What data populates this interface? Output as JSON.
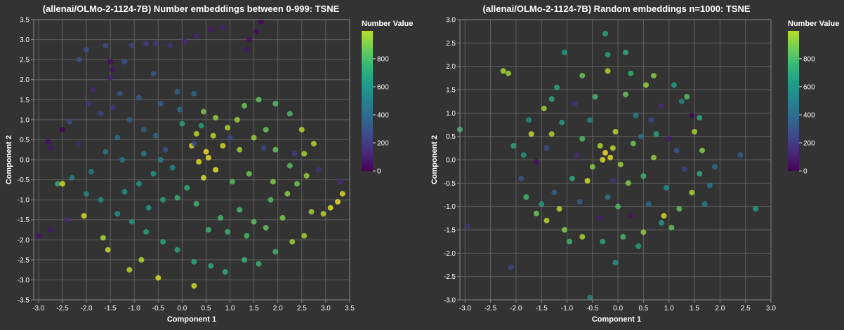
{
  "chart_data": [
    {
      "type": "scatter",
      "title": "(allenai/OLMo-2-1124-7B) Number embeddings between 0-999: TSNE",
      "xlabel": "Component 1",
      "ylabel": "Component 2",
      "xlim": [
        -3.1,
        3.5
      ],
      "ylim": [
        -3.5,
        3.5
      ],
      "x_ticks": [
        "-3.0",
        "-2.5",
        "-2.0",
        "-1.5",
        "-1.0",
        "-0.5",
        "0.0",
        "0.5",
        "1.0",
        "1.5",
        "2.0",
        "2.5",
        "3.0",
        "3.5"
      ],
      "y_ticks": [
        "-3.5",
        "-3.0",
        "-2.5",
        "-2.0",
        "-1.5",
        "-1.0",
        "-0.5",
        "0.0",
        "0.5",
        "1.0",
        "1.5",
        "2.0",
        "2.5",
        "3.0",
        "3.5"
      ],
      "grid": true,
      "legend": {
        "title": "Number Value",
        "placement": "right",
        "ticks": [
          "0",
          "200",
          "400",
          "600",
          "800"
        ],
        "range": [
          0,
          999
        ]
      },
      "colormap": "viridis",
      "marker_opacity": 0.8,
      "description": "Points form a swirl: low values (dark purple) along the upper-left and far-left edges, mid values (teal) through the center-left and bottom, high values (yellow) concentrated around (0.5, 0.0) and toward the lower right.",
      "points": [
        [
          1.65,
          3.45,
          5
        ],
        [
          1.55,
          3.2,
          20
        ],
        [
          1.4,
          3.0,
          35
        ],
        [
          1.35,
          2.75,
          55
        ],
        [
          0.6,
          3.25,
          70
        ],
        [
          0.85,
          3.3,
          90
        ],
        [
          0.3,
          3.1,
          105
        ],
        [
          0.05,
          2.95,
          120
        ],
        [
          -0.25,
          2.85,
          140
        ],
        [
          -0.55,
          2.9,
          160
        ],
        [
          -0.75,
          2.9,
          185
        ],
        [
          -1.05,
          2.85,
          205
        ],
        [
          -1.6,
          2.85,
          225
        ],
        [
          -2.0,
          2.75,
          245
        ],
        [
          -2.15,
          2.5,
          262
        ],
        [
          -1.5,
          2.45,
          30
        ],
        [
          -1.45,
          2.25,
          60
        ],
        [
          -1.5,
          2.05,
          95
        ],
        [
          -1.85,
          1.75,
          125
        ],
        [
          -1.95,
          1.4,
          150
        ],
        [
          -1.45,
          1.3,
          175
        ],
        [
          -1.7,
          1.15,
          210
        ],
        [
          -2.35,
          0.95,
          235
        ],
        [
          -2.5,
          0.75,
          12
        ],
        [
          -2.8,
          0.45,
          40
        ],
        [
          -2.75,
          0.3,
          65
        ],
        [
          -2.15,
          0.4,
          100
        ],
        [
          -1.3,
          1.65,
          270
        ],
        [
          -0.9,
          1.55,
          290
        ],
        [
          -0.45,
          1.4,
          310
        ],
        [
          -0.1,
          1.7,
          330
        ],
        [
          0.25,
          1.65,
          345
        ],
        [
          -1.1,
          1.0,
          300
        ],
        [
          -0.8,
          0.75,
          320
        ],
        [
          -0.55,
          0.6,
          360
        ],
        [
          -1.35,
          0.55,
          380
        ],
        [
          -1.6,
          0.2,
          400
        ],
        [
          -1.25,
          0.0,
          415
        ],
        [
          -0.8,
          0.15,
          430
        ],
        [
          -0.45,
          0.0,
          450
        ],
        [
          -0.2,
          -0.2,
          470
        ],
        [
          -1.9,
          -0.3,
          440
        ],
        [
          -2.3,
          -0.45,
          455
        ],
        [
          -2.6,
          -0.6,
          650
        ],
        [
          -2.0,
          -0.85,
          480
        ],
        [
          -1.7,
          -1.0,
          500
        ],
        [
          -1.2,
          -0.8,
          520
        ],
        [
          -0.9,
          -0.6,
          545
        ],
        [
          -0.6,
          -0.35,
          560
        ],
        [
          -1.35,
          -1.35,
          520
        ],
        [
          -1.05,
          -1.55,
          540
        ],
        [
          -0.7,
          -1.2,
          565
        ],
        [
          -0.4,
          -1.0,
          590
        ],
        [
          -0.75,
          -1.8,
          580
        ],
        [
          -0.4,
          -2.05,
          600
        ],
        [
          -0.1,
          -2.25,
          615
        ],
        [
          0.25,
          -2.55,
          630
        ],
        [
          0.6,
          -2.65,
          640
        ],
        [
          0.9,
          -2.8,
          655
        ],
        [
          1.3,
          -2.5,
          665
        ],
        [
          1.6,
          -2.6,
          680
        ],
        [
          1.95,
          -2.3,
          690
        ],
        [
          2.3,
          -2.05,
          850
        ],
        [
          2.55,
          -1.9,
          870
        ],
        [
          -1.1,
          -2.75,
          905
        ],
        [
          -0.85,
          -2.5,
          890
        ],
        [
          -0.5,
          -2.95,
          960
        ],
        [
          0.25,
          -3.15,
          945
        ],
        [
          -1.65,
          -1.95,
          880
        ],
        [
          -1.55,
          -2.25,
          930
        ],
        [
          0.55,
          -1.75,
          680
        ],
        [
          0.8,
          -1.45,
          700
        ],
        [
          1.2,
          -1.25,
          720
        ],
        [
          1.5,
          -1.55,
          745
        ],
        [
          1.75,
          -1.7,
          760
        ],
        [
          2.1,
          -1.45,
          800
        ],
        [
          2.7,
          -1.3,
          860
        ],
        [
          2.95,
          -1.35,
          900
        ],
        [
          3.25,
          -1.05,
          980
        ],
        [
          3.35,
          -0.85,
          950
        ],
        [
          3.1,
          -1.2,
          975
        ],
        [
          1.05,
          -0.55,
          730
        ],
        [
          1.4,
          -0.35,
          790
        ],
        [
          1.9,
          -0.55,
          820
        ],
        [
          2.2,
          -0.85,
          835
        ],
        [
          2.6,
          -0.4,
          845
        ],
        [
          0.5,
          0.2,
          990
        ],
        [
          0.55,
          0.05,
          985
        ],
        [
          0.35,
          -0.05,
          970
        ],
        [
          0.7,
          -0.25,
          995
        ],
        [
          0.45,
          -0.45,
          965
        ],
        [
          0.2,
          0.35,
          955
        ],
        [
          0.85,
          0.35,
          940
        ],
        [
          0.65,
          0.6,
          920
        ],
        [
          0.3,
          0.65,
          900
        ],
        [
          0.95,
          0.8,
          880
        ],
        [
          1.15,
          1.0,
          860
        ],
        [
          0.7,
          1.05,
          830
        ],
        [
          0.45,
          1.2,
          805
        ],
        [
          1.3,
          1.35,
          780
        ],
        [
          1.6,
          1.5,
          760
        ],
        [
          1.95,
          1.4,
          740
        ],
        [
          2.25,
          1.15,
          720
        ],
        [
          2.5,
          0.75,
          890
        ],
        [
          2.75,
          0.4,
          910
        ],
        [
          2.55,
          0.15,
          880
        ],
        [
          1.75,
          0.75,
          770
        ],
        [
          1.5,
          0.55,
          850
        ],
        [
          1.2,
          0.25,
          870
        ],
        [
          1.95,
          0.25,
          755
        ],
        [
          2.25,
          -0.15,
          740
        ],
        [
          0.1,
          -0.7,
          660
        ],
        [
          -0.1,
          -0.95,
          670
        ],
        [
          0.3,
          -1.1,
          690
        ],
        [
          -2.5,
          -0.6,
          940
        ],
        [
          -2.05,
          -1.4,
          960
        ],
        [
          -3.0,
          -1.9,
          45
        ],
        [
          -2.75,
          -1.75,
          70
        ],
        [
          -2.4,
          -1.5,
          110
        ],
        [
          -1.2,
          2.45,
          265
        ],
        [
          -0.6,
          2.15,
          285
        ],
        [
          2.85,
          -0.25,
          150
        ],
        [
          3.3,
          -0.55,
          120
        ],
        [
          2.35,
          0.15,
          175
        ],
        [
          1.7,
          0.3,
          195
        ],
        [
          1.0,
          0.55,
          215
        ],
        [
          0.25,
          0.4,
          240
        ],
        [
          -0.35,
          0.25,
          255
        ],
        [
          -0.05,
          1.25,
          380
        ],
        [
          0.0,
          0.9,
          600
        ],
        [
          0.4,
          0.85,
          580
        ],
        [
          1.85,
          -1.0,
          730
        ],
        [
          2.4,
          -0.6,
          780
        ],
        [
          0.95,
          -1.8,
          670
        ],
        [
          1.35,
          -1.9,
          710
        ]
      ]
    },
    {
      "type": "scatter",
      "title": "(allenai/OLMo-2-1124-7B) Random embeddings n=1000: TSNE",
      "xlabel": "Component 1",
      "ylabel": "Component 2",
      "xlim": [
        -3.1,
        3.0
      ],
      "ylim": [
        -3.0,
        3.0
      ],
      "x_ticks": [
        "-3.0",
        "-2.5",
        "-2.0",
        "-1.5",
        "-1.0",
        "-0.5",
        "0.0",
        "0.5",
        "1.0",
        "1.5",
        "2.0",
        "2.5",
        "3.0"
      ],
      "y_ticks": [
        "-3.0",
        "-2.5",
        "-2.0",
        "-1.5",
        "-1.0",
        "-0.5",
        "0.0",
        "0.5",
        "1.0",
        "1.5",
        "2.0",
        "2.5",
        "3.0"
      ],
      "grid": true,
      "legend": {
        "title": "Number Value",
        "placement": "right",
        "ticks": [
          "0",
          "200",
          "400",
          "600",
          "800"
        ],
        "range": [
          0,
          999
        ]
      },
      "colormap": "viridis",
      "marker_opacity": 0.8,
      "description": "Points form a roughly circular cloud centred at the origin with radius about 1.7; colors are randomly mixed with a dense cluster near (-0.2, 0.1).",
      "points": [
        [
          -0.25,
          2.7,
          620
        ],
        [
          -0.2,
          2.25,
          580
        ],
        [
          0.15,
          2.3,
          640
        ],
        [
          -1.05,
          2.3,
          560
        ],
        [
          -2.25,
          1.9,
          900
        ],
        [
          -2.15,
          1.85,
          850
        ],
        [
          -3.1,
          0.65,
          700
        ],
        [
          -2.95,
          -1.42,
          150
        ],
        [
          -2.1,
          -2.3,
          220
        ],
        [
          -0.55,
          -2.95,
          480
        ],
        [
          -0.05,
          -2.2,
          540
        ],
        [
          2.7,
          -1.05,
          560
        ],
        [
          2.4,
          0.1,
          300
        ],
        [
          1.8,
          -0.55,
          400
        ],
        [
          1.5,
          0.6,
          880
        ],
        [
          1.6,
          0.9,
          620
        ],
        [
          1.35,
          1.35,
          740
        ],
        [
          1.1,
          1.6,
          560
        ],
        [
          0.7,
          1.8,
          820
        ],
        [
          0.25,
          1.85,
          660
        ],
        [
          -0.2,
          1.9,
          900
        ],
        [
          -0.7,
          1.8,
          780
        ],
        [
          -1.2,
          1.55,
          610
        ],
        [
          -1.45,
          1.1,
          860
        ],
        [
          -1.7,
          0.55,
          930
        ],
        [
          -1.85,
          0.1,
          540
        ],
        [
          -1.9,
          -0.4,
          260
        ],
        [
          -1.8,
          -0.8,
          690
        ],
        [
          -1.6,
          -1.15,
          780
        ],
        [
          -1.4,
          -1.3,
          905
        ],
        [
          -1.05,
          -1.5,
          820
        ],
        [
          -0.7,
          -1.65,
          880
        ],
        [
          -0.3,
          -1.75,
          600
        ],
        [
          0.1,
          -1.65,
          700
        ],
        [
          0.5,
          -1.55,
          830
        ],
        [
          0.85,
          -1.35,
          560
        ],
        [
          1.2,
          -1.05,
          760
        ],
        [
          1.45,
          -0.7,
          880
        ],
        [
          1.6,
          -0.3,
          640
        ],
        [
          1.65,
          0.2,
          820
        ],
        [
          -0.25,
          0.15,
          990
        ],
        [
          -0.15,
          0.05,
          970
        ],
        [
          -0.3,
          0.0,
          950
        ],
        [
          -0.1,
          0.25,
          920
        ],
        [
          -0.35,
          0.3,
          885
        ],
        [
          0.05,
          -0.1,
          860
        ],
        [
          -0.5,
          -0.15,
          820
        ],
        [
          0.3,
          0.35,
          780
        ],
        [
          -0.7,
          0.45,
          720
        ],
        [
          0.5,
          -0.35,
          680
        ],
        [
          -0.9,
          -0.4,
          640
        ],
        [
          0.75,
          0.55,
          600
        ],
        [
          -1.1,
          0.8,
          560
        ],
        [
          0.95,
          -0.6,
          520
        ],
        [
          -0.55,
          0.85,
          480
        ],
        [
          0.35,
          0.95,
          440
        ],
        [
          -0.2,
          -0.8,
          400
        ],
        [
          0.6,
          -0.95,
          360
        ],
        [
          -1.25,
          -0.7,
          320
        ],
        [
          1.15,
          0.2,
          280
        ],
        [
          -1.4,
          0.25,
          240
        ],
        [
          1.3,
          -0.2,
          200
        ],
        [
          -0.85,
          1.2,
          160
        ],
        [
          0.85,
          1.15,
          120
        ],
        [
          -0.35,
          -1.25,
          80
        ],
        [
          0.25,
          -1.2,
          50
        ],
        [
          -1.6,
          -0.05,
          30
        ],
        [
          1.45,
          0.95,
          10
        ],
        [
          -1.15,
          -1.05,
          900
        ],
        [
          0.9,
          -1.2,
          940
        ],
        [
          -0.75,
          -0.9,
          300
        ],
        [
          0.45,
          0.5,
          380
        ],
        [
          -0.45,
          1.35,
          700
        ],
        [
          0.15,
          1.4,
          770
        ],
        [
          0.7,
          0.05,
          840
        ],
        [
          -1.3,
          1.3,
          630
        ],
        [
          1.25,
          1.25,
          480
        ],
        [
          -1.5,
          -0.95,
          580
        ],
        [
          1.05,
          -1.45,
          760
        ],
        [
          -0.05,
          0.6,
          910
        ],
        [
          -0.6,
          -0.45,
          950
        ],
        [
          0.2,
          -0.5,
          820
        ],
        [
          1.7,
          -0.95,
          430
        ],
        [
          -1.75,
          0.85,
          520
        ],
        [
          0.55,
          1.6,
          860
        ],
        [
          -0.95,
          -1.75,
          680
        ],
        [
          0.4,
          -1.85,
          590
        ],
        [
          1.9,
          -0.15,
          350
        ],
        [
          -2.05,
          0.3,
          610
        ],
        [
          -1.3,
          0.55,
          890
        ],
        [
          0.0,
          -1.0,
          720
        ],
        [
          -0.1,
          -0.45,
          150
        ],
        [
          0.65,
          0.85,
          230
        ],
        [
          -0.8,
          0.1,
          110
        ],
        [
          1.0,
          0.45,
          70
        ]
      ]
    }
  ]
}
